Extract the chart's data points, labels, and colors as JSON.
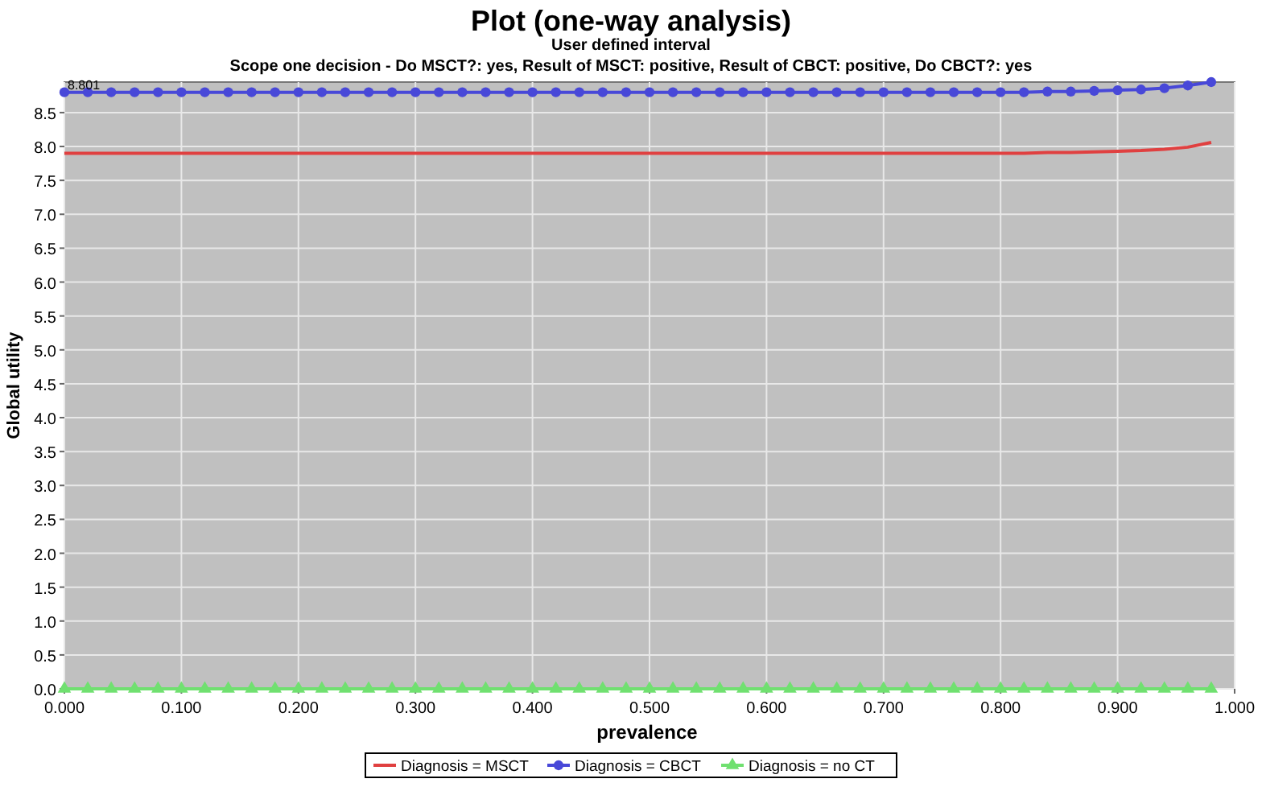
{
  "chart_data": {
    "type": "line",
    "title": "Plot (one-way analysis)",
    "subtitle": "User defined interval\nScope one decision - Do MSCT?: yes, Result of MSCT: positive, Result of CBCT: positive, Do CBCT?: yes",
    "xlabel": "prevalence",
    "ylabel": "Global utility",
    "x": [
      0,
      0.02,
      0.04,
      0.06,
      0.08,
      0.1,
      0.12,
      0.14,
      0.16,
      0.18,
      0.2,
      0.22,
      0.24,
      0.26,
      0.28,
      0.3,
      0.32,
      0.34,
      0.36,
      0.38,
      0.4,
      0.42,
      0.44,
      0.46,
      0.48,
      0.5,
      0.52,
      0.54,
      0.56,
      0.58,
      0.6,
      0.62,
      0.64,
      0.66,
      0.68,
      0.7,
      0.72,
      0.74,
      0.76,
      0.78,
      0.8,
      0.82,
      0.84,
      0.86,
      0.88,
      0.9,
      0.92,
      0.94,
      0.96,
      0.98
    ],
    "series": [
      {
        "name": "Diagnosis = MSCT",
        "color": "#e04040",
        "marker": "none",
        "values": [
          7.9,
          7.9,
          7.9,
          7.9,
          7.9,
          7.9,
          7.9,
          7.9,
          7.9,
          7.9,
          7.9,
          7.9,
          7.9,
          7.9,
          7.9,
          7.9,
          7.9,
          7.9,
          7.9,
          7.9,
          7.9,
          7.9,
          7.9,
          7.9,
          7.9,
          7.9,
          7.9,
          7.9,
          7.9,
          7.9,
          7.9,
          7.9,
          7.9,
          7.9,
          7.9,
          7.9,
          7.9,
          7.9,
          7.9,
          7.9,
          7.9,
          7.9,
          7.91,
          7.91,
          7.92,
          7.93,
          7.94,
          7.96,
          7.99,
          8.06
        ]
      },
      {
        "name": "Diagnosis = CBCT",
        "color": "#4848d8",
        "marker": "circle",
        "values": [
          8.8,
          8.8,
          8.8,
          8.8,
          8.8,
          8.8,
          8.8,
          8.8,
          8.8,
          8.8,
          8.8,
          8.8,
          8.8,
          8.8,
          8.8,
          8.8,
          8.8,
          8.8,
          8.8,
          8.8,
          8.8,
          8.8,
          8.8,
          8.8,
          8.8,
          8.8,
          8.8,
          8.8,
          8.8,
          8.8,
          8.8,
          8.8,
          8.8,
          8.8,
          8.8,
          8.8,
          8.8,
          8.8,
          8.8,
          8.8,
          8.8,
          8.8,
          8.81,
          8.81,
          8.82,
          8.83,
          8.84,
          8.86,
          8.9,
          8.95
        ]
      },
      {
        "name": "Diagnosis = no CT",
        "color": "#70e070",
        "marker": "triangle",
        "values": [
          0,
          0,
          0,
          0,
          0,
          0,
          0,
          0,
          0,
          0,
          0,
          0,
          0,
          0,
          0,
          0,
          0,
          0,
          0,
          0,
          0,
          0,
          0,
          0,
          0,
          0,
          0,
          0,
          0,
          0,
          0,
          0,
          0,
          0,
          0,
          0,
          0,
          0,
          0,
          0,
          0,
          0,
          0,
          0,
          0,
          0,
          0,
          0,
          0,
          0
        ]
      }
    ],
    "annotations": [
      {
        "text": "8.801",
        "x": 0,
        "y": 8.8
      }
    ],
    "xlim": [
      0,
      1
    ],
    "xticks": [
      {
        "value": 0,
        "label": "0.000"
      },
      {
        "value": 0.1,
        "label": "0.100"
      },
      {
        "value": 0.2,
        "label": "0.200"
      },
      {
        "value": 0.3,
        "label": "0.300"
      },
      {
        "value": 0.4,
        "label": "0.400"
      },
      {
        "value": 0.5,
        "label": "0.500"
      },
      {
        "value": 0.6,
        "label": "0.600"
      },
      {
        "value": 0.7,
        "label": "0.700"
      },
      {
        "value": 0.8,
        "label": "0.800"
      },
      {
        "value": 0.9,
        "label": "0.900"
      },
      {
        "value": 1,
        "label": "1.000"
      }
    ],
    "ylim": [
      0,
      8.95
    ],
    "yticks": [
      {
        "value": 0,
        "label": "0.0"
      },
      {
        "value": 0.5,
        "label": "0.5"
      },
      {
        "value": 1,
        "label": "1.0"
      },
      {
        "value": 1.5,
        "label": "1.5"
      },
      {
        "value": 2,
        "label": "2.0"
      },
      {
        "value": 2.5,
        "label": "2.5"
      },
      {
        "value": 3,
        "label": "3.0"
      },
      {
        "value": 3.5,
        "label": "3.5"
      },
      {
        "value": 4,
        "label": "4.0"
      },
      {
        "value": 4.5,
        "label": "4.5"
      },
      {
        "value": 5,
        "label": "5.0"
      },
      {
        "value": 5.5,
        "label": "5.5"
      },
      {
        "value": 6,
        "label": "6.0"
      },
      {
        "value": 6.5,
        "label": "6.5"
      },
      {
        "value": 7,
        "label": "7.0"
      },
      {
        "value": 7.5,
        "label": "7.5"
      },
      {
        "value": 8,
        "label": "8.0"
      },
      {
        "value": 8.5,
        "label": "8.5"
      }
    ],
    "grid": true,
    "legend": "bottom"
  }
}
